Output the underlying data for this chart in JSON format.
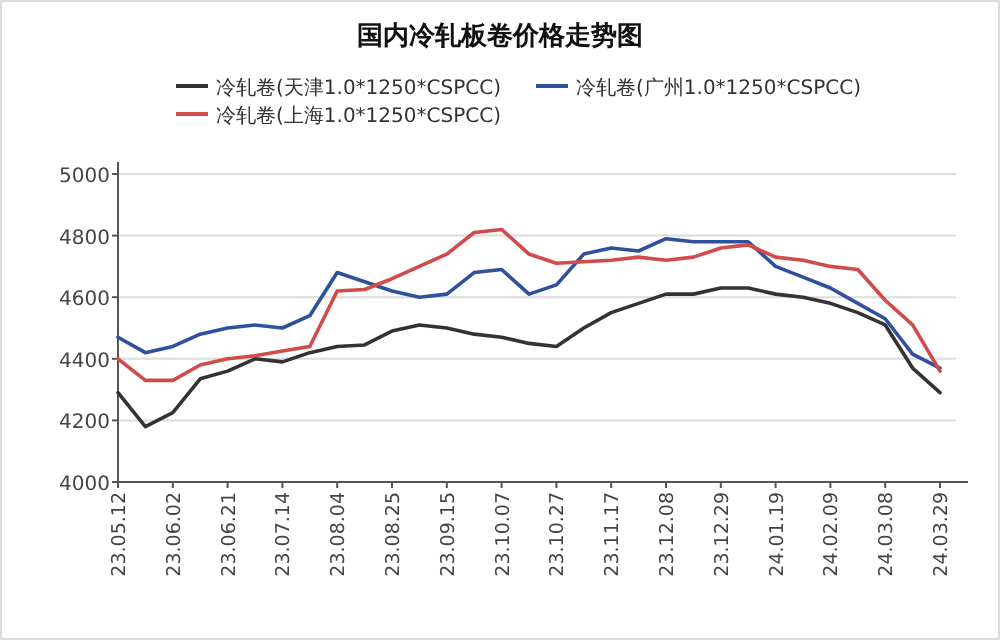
{
  "chart_data": {
    "type": "line",
    "title": "国内冷轧板卷价格走势图",
    "categories": [
      "23.05.12",
      null,
      "23.06.02",
      null,
      "23.06.21",
      null,
      "23.07.14",
      null,
      "23.08.04",
      null,
      "23.08.25",
      null,
      "23.09.15",
      null,
      "23.10.07",
      null,
      "23.10.27",
      null,
      "23.11.17",
      null,
      "23.12.08",
      null,
      "23.12.29",
      null,
      "24.01.19",
      null,
      "24.02.09",
      null,
      "24.03.08",
      null,
      "24.03.29"
    ],
    "series": [
      {
        "name": "冷轧卷(天津1.0*1250*CSPCC)",
        "color": "#333333",
        "values": [
          4290,
          4180,
          4225,
          4335,
          4360,
          4400,
          4390,
          4420,
          4440,
          4445,
          4490,
          4510,
          4500,
          4480,
          4470,
          4450,
          4440,
          4500,
          4550,
          4580,
          4610,
          4610,
          4630,
          4630,
          4610,
          4600,
          4580,
          4550,
          4510,
          4370,
          4290
        ]
      },
      {
        "name": "冷轧卷(广州1.0*1250*CSPCC)",
        "color": "#2f4f9f",
        "values": [
          4470,
          4420,
          4440,
          4480,
          4500,
          4510,
          4500,
          4540,
          4680,
          4650,
          4620,
          4600,
          4610,
          4680,
          4690,
          4610,
          4640,
          4740,
          4760,
          4750,
          4790,
          4780,
          4780,
          4780,
          4700,
          4665,
          4630,
          4580,
          4530,
          4415,
          4370
        ]
      },
      {
        "name": "冷轧卷(上海1.0*1250*CSPCC)",
        "color": "#d24a4a",
        "values": [
          4400,
          4330,
          4330,
          4380,
          4400,
          4410,
          4425,
          4440,
          4620,
          4625,
          4660,
          4700,
          4740,
          4810,
          4820,
          4740,
          4710,
          4715,
          4720,
          4730,
          4720,
          4730,
          4760,
          4770,
          4730,
          4720,
          4700,
          4690,
          4590,
          4510,
          4360
        ]
      }
    ],
    "ylim": [
      4000,
      5000
    ],
    "yticks": [
      4000,
      4200,
      4400,
      4600,
      4800,
      5000
    ],
    "grid": "y",
    "legend": "top"
  }
}
